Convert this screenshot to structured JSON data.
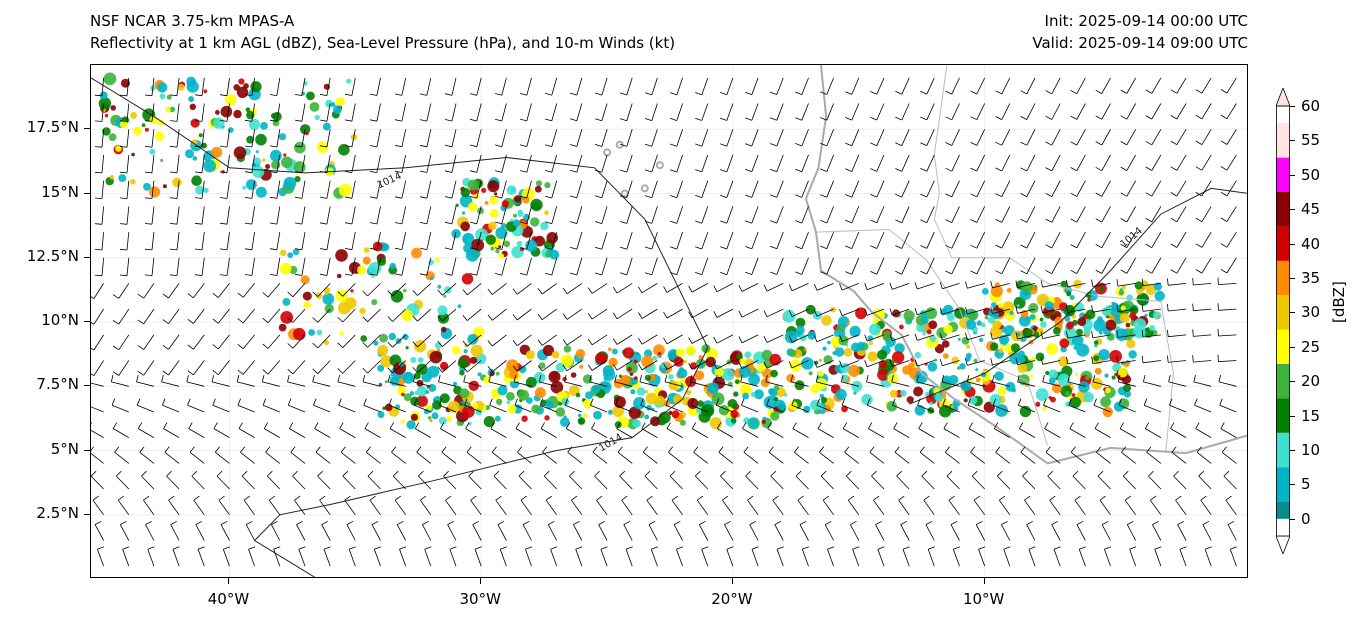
{
  "title": {
    "line1": "NSF NCAR 3.75-km MPAS-A",
    "line2": "Reflectivity at 1 km AGL (dBZ), Sea-Level Pressure (hPa), and 10-m Winds (kt)",
    "init": "Init: 2025-09-14 00:00 UTC",
    "valid": "Valid: 2025-09-14 09:00 UTC"
  },
  "map": {
    "lon_range": [
      -45.5,
      0.5
    ],
    "lat_range": [
      0,
      20
    ],
    "lat_labels": [
      "17.5°N",
      "15°N",
      "12.5°N",
      "10°N",
      "7.5°N",
      "5°N",
      "2.5°N"
    ],
    "lat_values": [
      17.5,
      15,
      12.5,
      10,
      7.5,
      5,
      2.5
    ],
    "lon_labels": [
      "40°W",
      "30°W",
      "20°W",
      "10°W"
    ],
    "lon_values": [
      -40,
      -30,
      -20,
      -10
    ],
    "isobar_label": "1014",
    "colors": {
      "coast": "#aaaaaa",
      "isobar": "#222222",
      "barb": "#000000"
    }
  },
  "colorbar": {
    "unit": "[dBZ]",
    "ticks": [
      "0",
      "5",
      "10",
      "15",
      "20",
      "25",
      "30",
      "35",
      "40",
      "45",
      "50",
      "55",
      "60"
    ],
    "colors": [
      "#ffffff",
      "#0a8a8a",
      "#00b4c8",
      "#40e0d0",
      "#008000",
      "#3cb43c",
      "#ffff00",
      "#f0c800",
      "#ff8c00",
      "#d20000",
      "#8b0000",
      "#ff00ff",
      "#ffe4e1"
    ]
  }
}
